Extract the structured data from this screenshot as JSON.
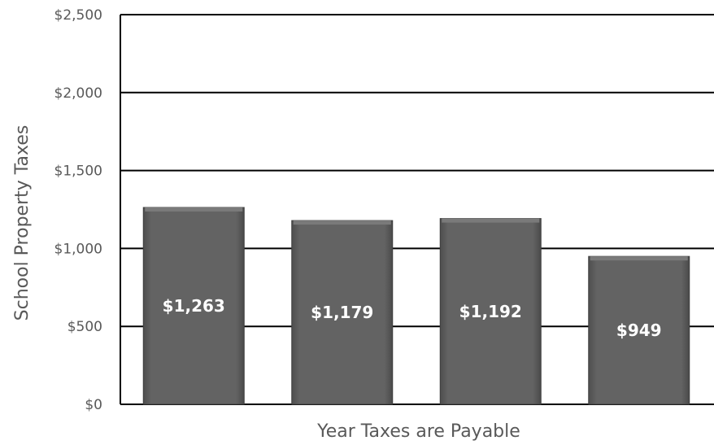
{
  "chart_data": {
    "type": "bar",
    "title": "",
    "xlabel": "Year Taxes are Payable",
    "ylabel": "School Property Taxes",
    "categories": [
      "",
      "",
      "",
      ""
    ],
    "values": [
      1263,
      1179,
      1192,
      949
    ],
    "data_labels": [
      "$1,263",
      "$1,179",
      "$1,192",
      "$949"
    ],
    "ylim": [
      0,
      2500
    ],
    "yticks": [
      0,
      500,
      1000,
      1500,
      2000,
      2500
    ],
    "ytick_labels": [
      "$0",
      "$500",
      "$1,000",
      "$1,500",
      "$2,000",
      "$2,500"
    ],
    "grid": true,
    "legend": "none",
    "colors": {
      "bar_fill": "#5f5f5f",
      "bar_top": "#7a7a7a",
      "grid": "#000000",
      "text": "#595959",
      "data_label": "#ffffff"
    }
  }
}
